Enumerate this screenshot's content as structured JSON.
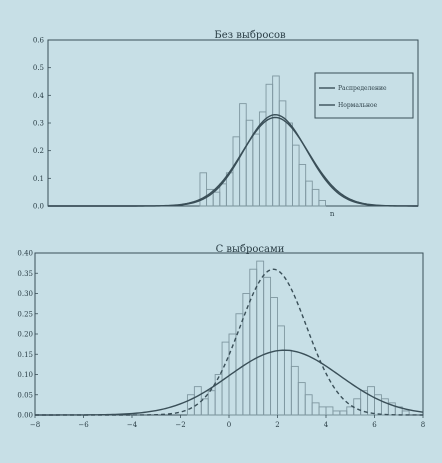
{
  "colors": {
    "background": "#c7dfe6",
    "ink": "#3a4f58",
    "bars": "#7f97a0"
  },
  "chart_data": [
    {
      "type": "bar",
      "title": "Без выбросов",
      "xlim": [
        -8,
        6
      ],
      "ylim": [
        0,
        0.6
      ],
      "y_tick_labels": [
        "0.0",
        "0.1",
        "0.2",
        "0.3",
        "0.4",
        "0.5",
        "0.6"
      ],
      "x_tick_labels": [
        "n"
      ],
      "bin_edges": [
        -2.25,
        -2.0,
        -1.75,
        -1.5,
        -1.25,
        -1.0,
        -0.75,
        -0.5,
        -0.25,
        0.0,
        0.25,
        0.5,
        0.75,
        1.0,
        1.25,
        1.5,
        1.75,
        2.0,
        2.25,
        2.5
      ],
      "values": [
        0.12,
        0.06,
        0.05,
        0.08,
        0.12,
        0.25,
        0.37,
        0.31,
        0.26,
        0.34,
        0.44,
        0.47,
        0.38,
        0.3,
        0.22,
        0.15,
        0.09,
        0.06,
        0.02
      ],
      "curves": [
        {
          "name": "Распределение",
          "kind": "normal",
          "mean": 0.6,
          "sd": 1.2,
          "amplitude": 0.33,
          "dashed": false
        },
        {
          "name": "Нормальное",
          "kind": "normal",
          "mean": 0.6,
          "sd": 1.25,
          "amplitude": 0.32,
          "dashed": false
        }
      ],
      "legend_placement": "top-right"
    },
    {
      "type": "bar",
      "title": "С выбросами",
      "xlim": [
        -8,
        6
      ],
      "ylim": [
        0,
        0.4
      ],
      "y_tick_labels": [
        "0.00",
        "0.05",
        "0.10",
        "0.15",
        "0.20",
        "0.25",
        "0.30",
        "0.35",
        "0.40"
      ],
      "x_tick_labels": [
        "−8",
        "−6",
        "−4",
        "−2",
        "0",
        "2",
        "4",
        "6",
        "8"
      ],
      "bin_edges": [
        -2.5,
        -2.25,
        -2.0,
        -1.75,
        -1.5,
        -1.25,
        -1.0,
        -0.75,
        -0.5,
        -0.25,
        0.0,
        0.25,
        0.5,
        0.75,
        1.0,
        1.25,
        1.5,
        1.75,
        2.0,
        2.25,
        2.5,
        2.75,
        3.0,
        3.25,
        3.5,
        3.75,
        4.0,
        4.25,
        4.5,
        4.75,
        5.0,
        5.25,
        5.5
      ],
      "values": [
        0.05,
        0.07,
        0.04,
        0.06,
        0.1,
        0.18,
        0.2,
        0.25,
        0.3,
        0.36,
        0.38,
        0.34,
        0.29,
        0.22,
        0.16,
        0.12,
        0.08,
        0.05,
        0.03,
        0.02,
        0.02,
        0.01,
        0.01,
        0.02,
        0.04,
        0.06,
        0.07,
        0.05,
        0.04,
        0.03,
        0.02,
        0.01
      ],
      "curves": [
        {
          "name": "",
          "kind": "normal",
          "mean": 0.6,
          "sd": 1.2,
          "amplitude": 0.36,
          "dashed": true
        },
        {
          "name": "",
          "kind": "normal",
          "mean": 1.0,
          "sd": 2.0,
          "amplitude": 0.16,
          "dashed": false
        }
      ]
    }
  ]
}
